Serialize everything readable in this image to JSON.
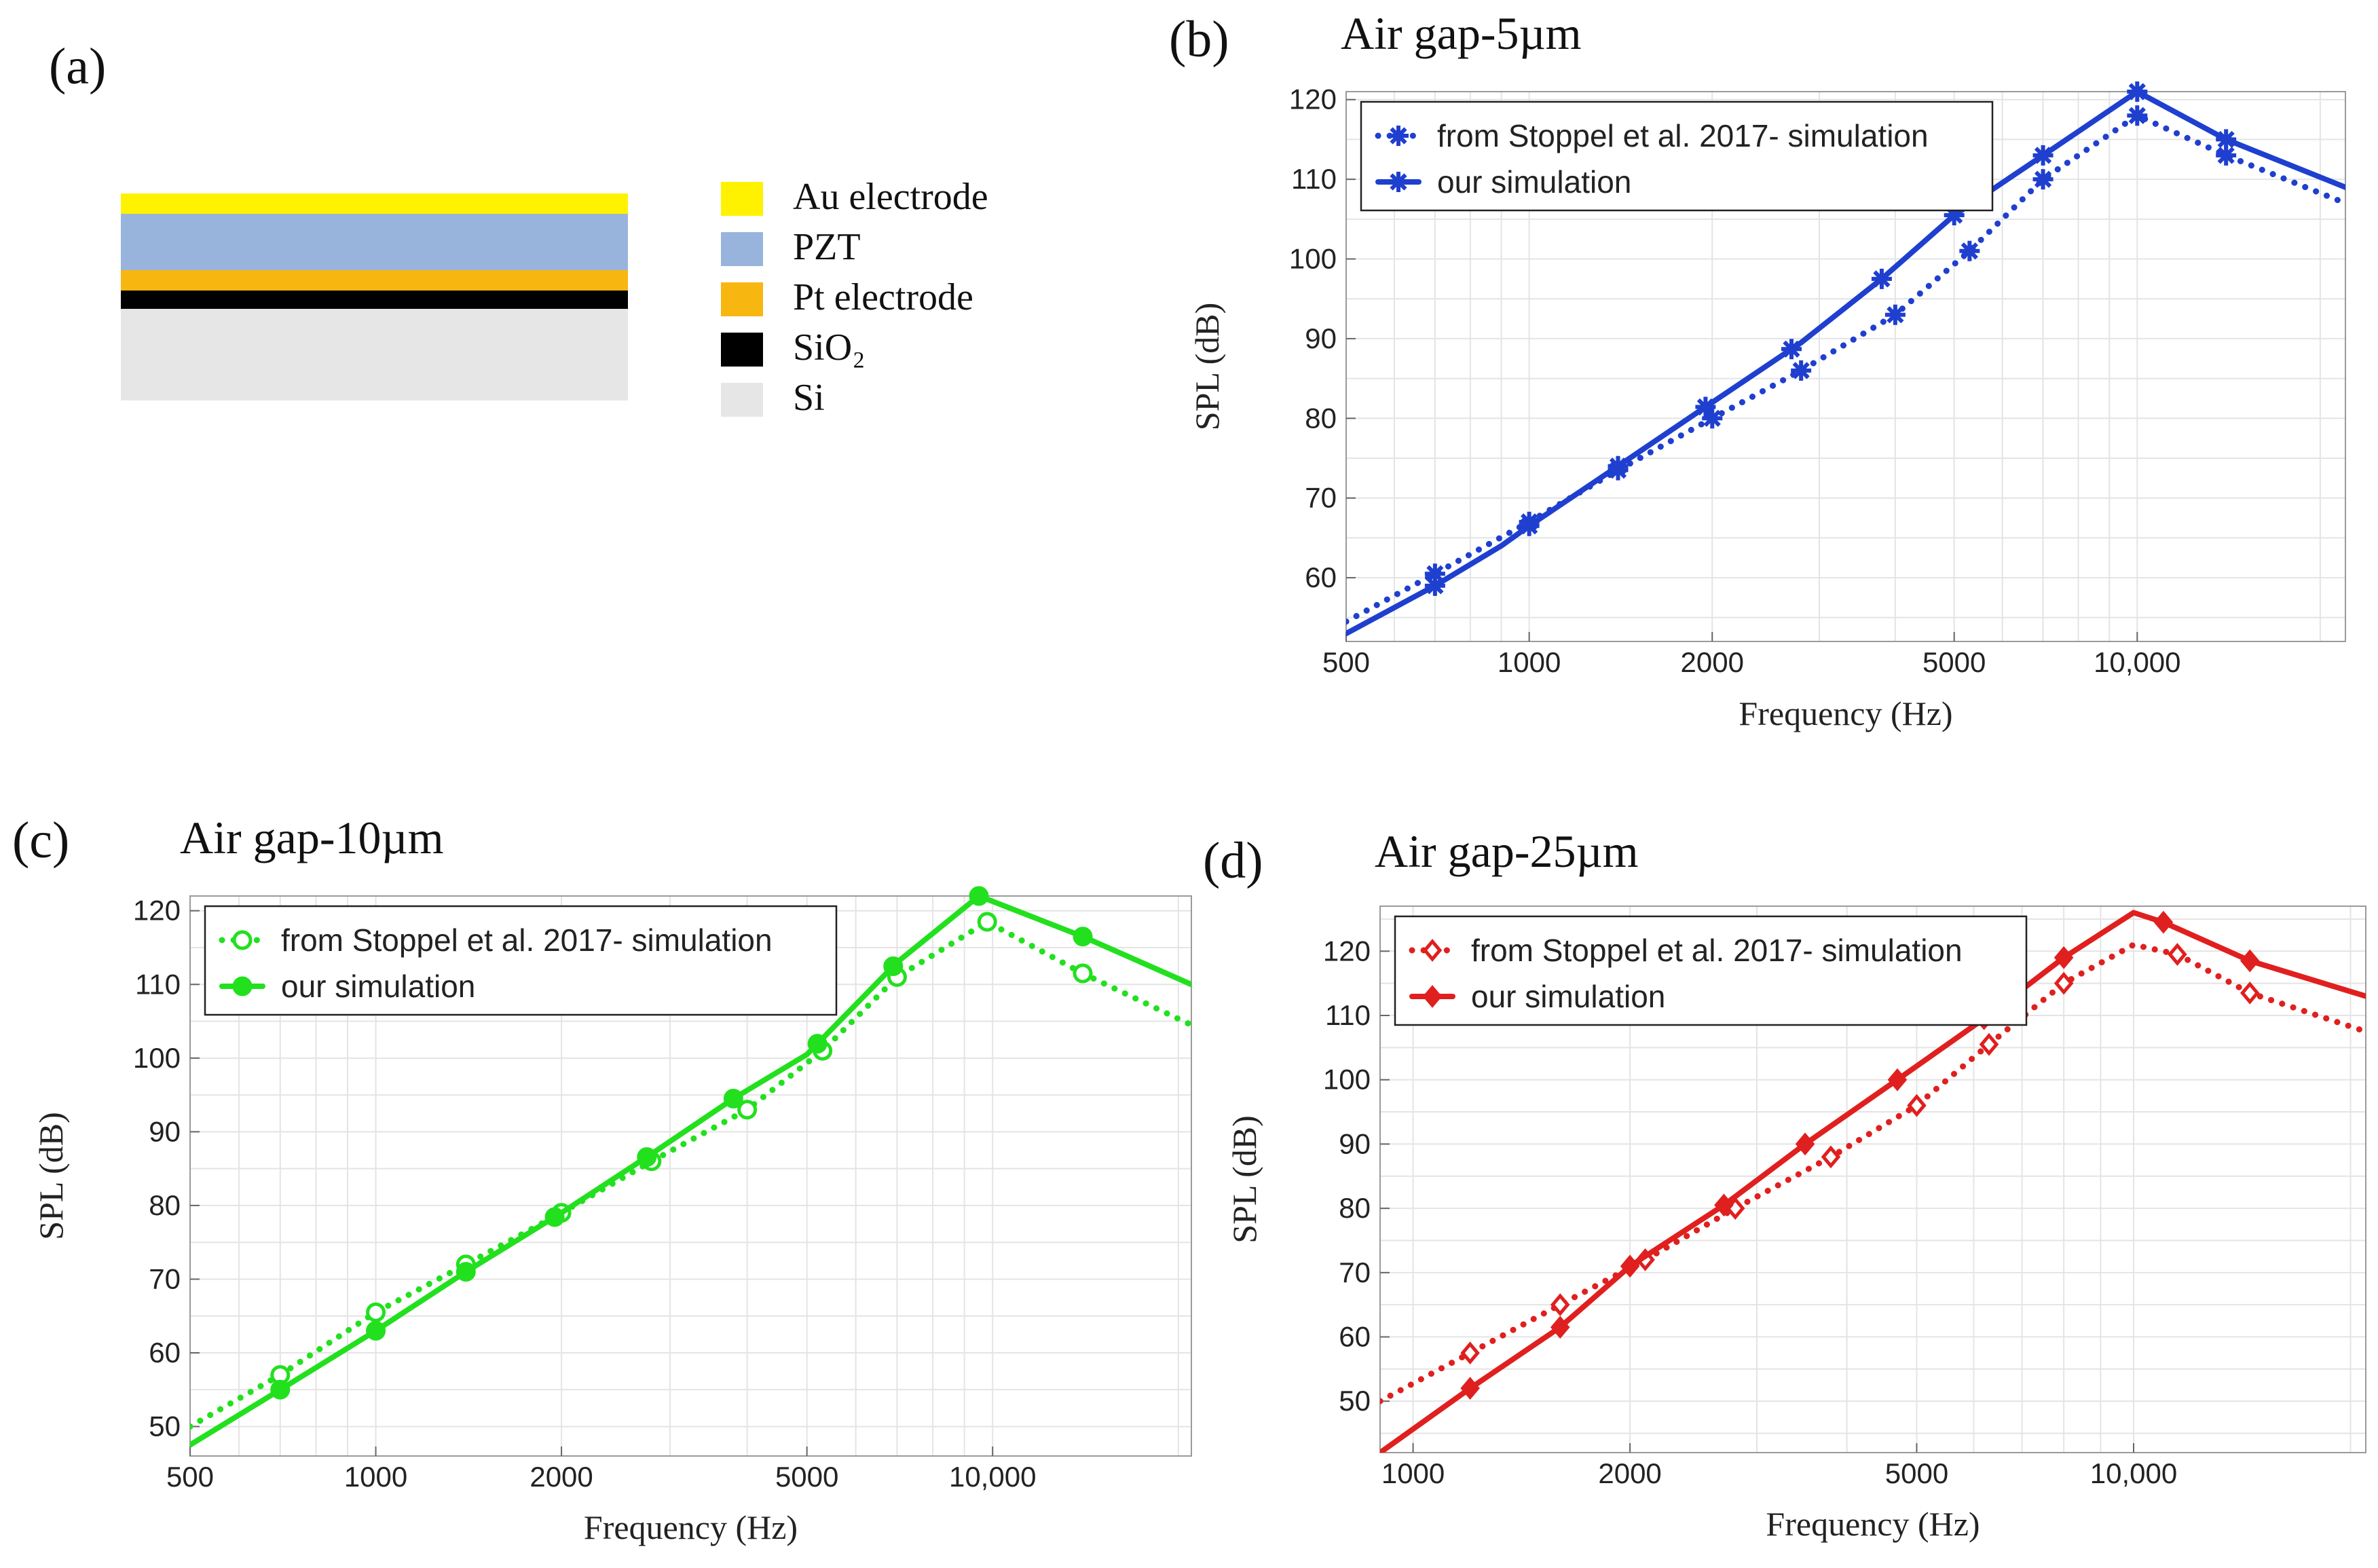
{
  "panels": {
    "a": {
      "label": "(a)"
    },
    "b": {
      "label": "(b)"
    },
    "c": {
      "label": "(c)"
    },
    "d": {
      "label": "(d)"
    }
  },
  "stack": {
    "legend": [
      {
        "name": "Au electrode",
        "color": "#FFF200"
      },
      {
        "name": "PZT",
        "color": "#98B4DC"
      },
      {
        "name": "Pt electrode",
        "color": "#F8B610"
      },
      {
        "name": "SiO₂",
        "color": "#000000"
      },
      {
        "name": "Si",
        "color": "#E6E6E6"
      }
    ]
  },
  "chart_data": [
    {
      "id": "b",
      "type": "line",
      "title": "Air gap-5µm",
      "xlabel": "Frequency (Hz)",
      "ylabel": "SPL (dB)",
      "xscale": "log",
      "xlim": [
        500,
        22000
      ],
      "ylim": [
        52,
        121
      ],
      "xticks": [
        500,
        1000,
        2000,
        5000,
        10000
      ],
      "xtick_labels": [
        "500",
        "1000",
        "2000",
        "5000",
        "10,000"
      ],
      "yticks": [
        60,
        70,
        80,
        90,
        100,
        110,
        120
      ],
      "color": "#1F3FCF",
      "marker": "asterisk",
      "series": [
        {
          "name": "from Stoppel et al. 2017- simulation",
          "style": "dotted",
          "x": [
            500,
            700,
            1000,
            1400,
            2000,
            2800,
            4000,
            5300,
            7000,
            10000,
            14000,
            22000
          ],
          "y": [
            54.5,
            60.5,
            67,
            73.5,
            80,
            86,
            93,
            101,
            110,
            118,
            113,
            107
          ]
        },
        {
          "name": "our simulation",
          "style": "solid",
          "x": [
            500,
            700,
            900,
            1000,
            1400,
            2000,
            2800,
            3800,
            5000,
            7000,
            10000,
            14000,
            22000
          ],
          "y": [
            53,
            59,
            64,
            66.5,
            74,
            82,
            89.5,
            97.5,
            105.5,
            113,
            121,
            115,
            109
          ]
        }
      ],
      "marker_x": {
        "from Stoppel et al. 2017- simulation": [
          700,
          1000,
          1400,
          2000,
          2800,
          4000,
          5300,
          7000,
          10000,
          14000
        ],
        "our simulation": [
          700,
          1000,
          1400,
          1950,
          2700,
          3800,
          5000,
          7000,
          10000,
          14000
        ]
      },
      "legend": "top-left"
    },
    {
      "id": "c",
      "type": "line",
      "title": "Air gap-10µm",
      "xlabel": "Frequency (Hz)",
      "ylabel": "SPL (dB)",
      "xscale": "log",
      "xlim": [
        500,
        21000
      ],
      "ylim": [
        46,
        122
      ],
      "xticks": [
        500,
        1000,
        2000,
        5000,
        10000
      ],
      "xtick_labels": [
        "500",
        "1000",
        "2000",
        "5000",
        "10,000"
      ],
      "yticks": [
        50,
        60,
        70,
        80,
        90,
        100,
        110,
        120
      ],
      "color": "#22E01E",
      "marker": "circle",
      "series": [
        {
          "name": "from Stoppel et al. 2017- simulation",
          "style": "dotted",
          "x": [
            500,
            700,
            1000,
            1400,
            2000,
            2800,
            4000,
            5300,
            7000,
            9800,
            14000,
            21000
          ],
          "y": [
            50,
            57,
            65.5,
            72,
            79,
            86,
            93,
            101,
            111,
            118.5,
            111.5,
            104.5
          ]
        },
        {
          "name": "our simulation",
          "style": "solid",
          "x": [
            500,
            700,
            1000,
            1400,
            2000,
            2800,
            3800,
            5000,
            7000,
            9500,
            14000,
            21000
          ],
          "y": [
            47.5,
            55,
            63,
            71,
            79,
            87,
            94.5,
            100.5,
            113,
            122,
            116.5,
            110
          ]
        }
      ],
      "marker_x": {
        "from Stoppel et al. 2017- simulation": [
          700,
          1000,
          1400,
          2000,
          2800,
          4000,
          5300,
          7000,
          9800,
          14000
        ],
        "our simulation": [
          700,
          1000,
          1400,
          1950,
          2750,
          3800,
          5200,
          6900,
          9500,
          14000
        ]
      },
      "legend": "top-left"
    },
    {
      "id": "d",
      "type": "line",
      "title": "Air gap-25µm",
      "xlabel": "Frequency (Hz)",
      "ylabel": "SPL (dB)",
      "xscale": "log",
      "xlim": [
        900,
        21000
      ],
      "ylim": [
        42,
        127
      ],
      "xticks": [
        1000,
        2000,
        5000,
        10000
      ],
      "xtick_labels": [
        "1000",
        "2000",
        "5000",
        "10,000"
      ],
      "yticks": [
        50,
        60,
        70,
        80,
        90,
        100,
        110,
        120
      ],
      "color": "#E01F1F",
      "marker": "diamond",
      "series": [
        {
          "name": "from Stoppel et al. 2017- simulation",
          "style": "dotted",
          "x": [
            900,
            1200,
            1600,
            2100,
            2800,
            3800,
            5000,
            6300,
            8000,
            10000,
            11500,
            14500,
            21000
          ],
          "y": [
            50,
            57.5,
            65,
            72,
            80,
            88,
            96,
            105.5,
            115,
            121,
            119.5,
            113.5,
            107.5
          ]
        },
        {
          "name": "our simulation",
          "style": "solid",
          "x": [
            900,
            1200,
            1600,
            2000,
            2700,
            3500,
            4700,
            6200,
            8000,
            10000,
            11000,
            14500,
            21000
          ],
          "y": [
            42,
            52,
            61.5,
            71,
            80.5,
            90,
            100,
            109.5,
            119,
            126,
            124.5,
            118.5,
            113
          ]
        }
      ],
      "marker_x": {
        "from Stoppel et al. 2017- simulation": [
          1200,
          1600,
          2100,
          2800,
          3800,
          5000,
          6300,
          8000,
          11500,
          14500
        ],
        "our simulation": [
          1200,
          1600,
          2000,
          2700,
          3500,
          4700,
          6200,
          8000,
          11000,
          14500
        ]
      },
      "legend": "top-left"
    }
  ]
}
